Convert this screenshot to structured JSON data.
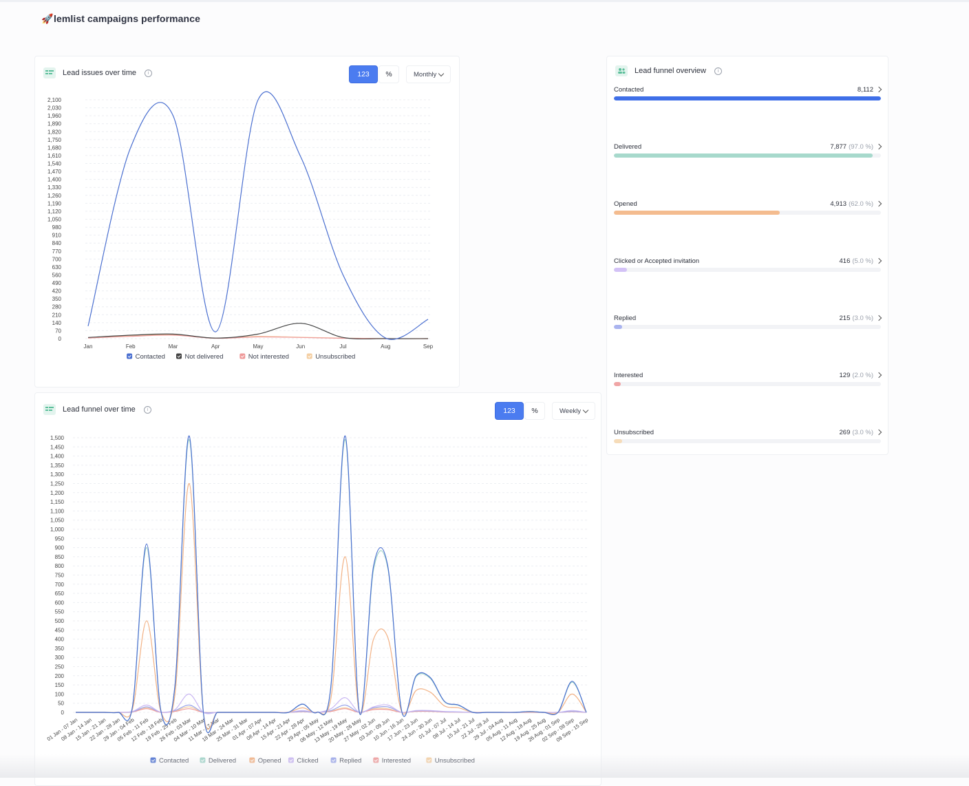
{
  "page": {
    "title": "lemlist campaigns performance",
    "title_icon": "rocket-icon"
  },
  "lead_issues": {
    "title": "Lead issues over time",
    "toggle_number": "123",
    "toggle_percent": "%",
    "period": "Monthly"
  },
  "lead_funnel_time": {
    "title": "Lead funnel over time",
    "toggle_number": "123",
    "toggle_percent": "%",
    "period": "Weekly"
  },
  "funnel_overview": {
    "title": "Lead funnel overview",
    "rows": [
      {
        "label": "Contacted",
        "value": "8,112",
        "pct": "",
        "fraction": 1.0,
        "color": "#3f6fe8"
      },
      {
        "label": "Delivered",
        "value": "7,877",
        "pct": "(97.0 %)",
        "fraction": 0.97,
        "color": "#a7d9cc"
      },
      {
        "label": "Opened",
        "value": "4,913",
        "pct": "(62.0 %)",
        "fraction": 0.62,
        "color": "#f4bc8f"
      },
      {
        "label": "Clicked or Accepted invitation",
        "value": "416",
        "pct": "(5.0 %)",
        "fraction": 0.05,
        "color": "#d3c2f6"
      },
      {
        "label": "Replied",
        "value": "215",
        "pct": "(3.0 %)",
        "fraction": 0.03,
        "color": "#aab4ef"
      },
      {
        "label": "Interested",
        "value": "129",
        "pct": "(2.0 %)",
        "fraction": 0.02,
        "color": "#f0a5a5"
      },
      {
        "label": "Unsubscribed",
        "value": "269",
        "pct": "(3.0 %)",
        "fraction": 0.03,
        "color": "#f6dcb9"
      }
    ]
  },
  "chart_data": [
    {
      "type": "line",
      "title": "Lead issues over time",
      "categories": [
        "Jan",
        "Feb",
        "Mar",
        "Apr",
        "May",
        "Jun",
        "Jul",
        "Aug",
        "Sep"
      ],
      "y_ticks": [
        "2,100",
        "2,030",
        "1,960",
        "1,890",
        "1,820",
        "1,750",
        "1,680",
        "1,610",
        "1,540",
        "1,470",
        "1,400",
        "1,330",
        "1,260",
        "1,190",
        "1,120",
        "1,050",
        "980",
        "910",
        "840",
        "770",
        "700",
        "630",
        "560",
        "490",
        "420",
        "350",
        "280",
        "210",
        "140",
        "70",
        "0"
      ],
      "ylim": [
        0,
        2100
      ],
      "legend_position": "bottom",
      "grid": true,
      "series": [
        {
          "name": "Contacted",
          "color": "#4a6fd0",
          "values": [
            110,
            1680,
            1960,
            60,
            2100,
            1600,
            560,
            5,
            170
          ]
        },
        {
          "name": "Not delivered",
          "color": "#444444",
          "values": [
            10,
            30,
            40,
            5,
            40,
            135,
            10,
            0,
            0
          ]
        },
        {
          "name": "Not interested",
          "color": "#ef9a9a",
          "values": [
            5,
            20,
            30,
            3,
            15,
            10,
            3,
            0,
            0
          ]
        },
        {
          "name": "Unsubscribed",
          "color": "#f4cfa3",
          "values": [
            8,
            25,
            35,
            4,
            20,
            12,
            4,
            0,
            0
          ]
        }
      ]
    },
    {
      "type": "line",
      "title": "Lead funnel over time",
      "categories": [
        "01 Jan - 07 Jan",
        "08 Jan - 14 Jan",
        "15 Jan - 21 Jan",
        "22 Jan - 28 Jan",
        "29 Jan - 04 Feb",
        "05 Feb - 11 Feb",
        "12 Feb - 18 Feb",
        "19 Feb - 25 Feb",
        "26 Feb - 03 Mar",
        "04 Mar - 10 Mar",
        "11 Mar - 17 Mar",
        "18 Mar - 24 Mar",
        "25 Mar - 31 Mar",
        "01 Apr - 07 Apr",
        "08 Apr - 14 Apr",
        "15 Apr - 21 Apr",
        "22 Apr - 28 Apr",
        "29 Apr - 05 May",
        "06 May - 12 May",
        "13 May - 19 May",
        "20 May - 26 May",
        "27 May - 02 Jun",
        "03 Jun - 09 Jun",
        "10 Jun - 16 Jun",
        "17 Jun - 23 Jun",
        "24 Jun - 30 Jun",
        "01 Jul - 07 Jul",
        "08 Jul - 14 Jul",
        "15 Jul - 21 Jul",
        "22 Jul - 28 Jul",
        "29 Jul - 04 Aug",
        "05 Aug - 11 Aug",
        "12 Aug - 18 Aug",
        "19 Aug - 25 Aug",
        "26 Aug - 01 Sep",
        "02 Sep - 08 Sep",
        "09 Sep - 15 Sep"
      ],
      "y_ticks": [
        "1,500",
        "1,450",
        "1,400",
        "1,350",
        "1,300",
        "1,250",
        "1,200",
        "1,150",
        "1,100",
        "1,050",
        "1,000",
        "950",
        "900",
        "850",
        "800",
        "750",
        "700",
        "650",
        "600",
        "550",
        "500",
        "450",
        "400",
        "350",
        "300",
        "250",
        "200",
        "150",
        "100",
        "50",
        "0"
      ],
      "ylim": [
        0,
        1500
      ],
      "legend_position": "bottom",
      "grid": true,
      "series": [
        {
          "name": "Contacted",
          "color": "#4a6fd0",
          "values": [
            0,
            0,
            0,
            0,
            30,
            920,
            10,
            150,
            1510,
            0,
            0,
            0,
            0,
            0,
            0,
            0,
            45,
            0,
            150,
            1510,
            0,
            800,
            800,
            0,
            200,
            190,
            60,
            40,
            0,
            0,
            0,
            0,
            5,
            0,
            0,
            170,
            0
          ]
        },
        {
          "name": "Delivered",
          "color": "#9fd3c7",
          "values": [
            0,
            0,
            0,
            0,
            28,
            900,
            10,
            145,
            1490,
            0,
            0,
            0,
            0,
            0,
            0,
            0,
            44,
            0,
            145,
            1490,
            0,
            780,
            790,
            0,
            195,
            185,
            58,
            38,
            0,
            0,
            0,
            0,
            5,
            0,
            0,
            165,
            0
          ]
        },
        {
          "name": "Opened",
          "color": "#f2b184",
          "values": [
            0,
            0,
            0,
            0,
            15,
            500,
            5,
            100,
            1250,
            0,
            0,
            0,
            0,
            0,
            0,
            0,
            25,
            0,
            80,
            850,
            0,
            400,
            410,
            0,
            120,
            110,
            35,
            25,
            0,
            0,
            0,
            0,
            2,
            0,
            0,
            100,
            0
          ]
        },
        {
          "name": "Clicked",
          "color": "#c8b6f2",
          "values": [
            0,
            0,
            0,
            0,
            5,
            40,
            1,
            15,
            100,
            0,
            0,
            0,
            0,
            0,
            0,
            0,
            10,
            0,
            20,
            80,
            0,
            30,
            40,
            0,
            10,
            10,
            5,
            3,
            0,
            0,
            0,
            0,
            0,
            0,
            0,
            10,
            0
          ]
        },
        {
          "name": "Replied",
          "color": "#9aa6ea",
          "values": [
            0,
            0,
            0,
            0,
            3,
            30,
            1,
            10,
            40,
            0,
            0,
            0,
            0,
            0,
            0,
            0,
            5,
            0,
            10,
            40,
            0,
            25,
            30,
            0,
            8,
            8,
            3,
            2,
            0,
            0,
            0,
            0,
            0,
            0,
            0,
            5,
            0
          ]
        },
        {
          "name": "Interested",
          "color": "#ef9a9a",
          "values": [
            0,
            0,
            0,
            0,
            2,
            20,
            0,
            5,
            20,
            0,
            0,
            0,
            0,
            0,
            0,
            0,
            3,
            0,
            5,
            20,
            0,
            15,
            15,
            0,
            5,
            5,
            2,
            1,
            0,
            0,
            0,
            0,
            0,
            0,
            0,
            3,
            0
          ]
        },
        {
          "name": "Unsubscribed",
          "color": "#f4cfa3",
          "values": [
            0,
            0,
            0,
            0,
            2,
            25,
            0,
            8,
            30,
            0,
            0,
            0,
            0,
            0,
            0,
            0,
            4,
            0,
            8,
            25,
            0,
            20,
            20,
            0,
            6,
            6,
            2,
            1,
            0,
            0,
            0,
            0,
            0,
            0,
            0,
            4,
            0
          ]
        }
      ]
    }
  ]
}
